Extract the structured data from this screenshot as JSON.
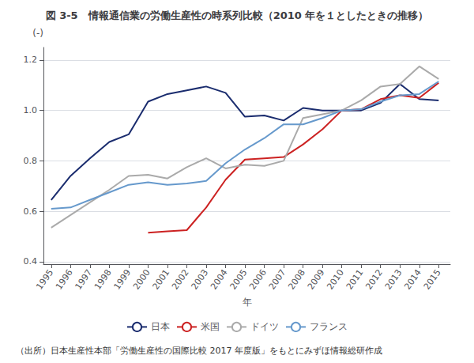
{
  "chart_data": {
    "type": "line",
    "title": "図 3-5　情報通信業の労働生産性の時系列比較（2010 年を１としたときの推移）",
    "xlabel": "年",
    "ylabel": "(-)",
    "annotations": [
      "（出所）日本生産性本部「労働生産性の国際比較 2017 年度版」をもとにみずほ情報総研作成"
    ],
    "x": [
      1995,
      1996,
      1997,
      1998,
      1999,
      2000,
      2001,
      2002,
      2003,
      2004,
      2005,
      2006,
      2007,
      2008,
      2009,
      2010,
      2011,
      2012,
      2013,
      2014,
      2015
    ],
    "series": [
      {
        "name": "日本",
        "color": "#1a2c6e",
        "values": [
          0.645,
          0.74,
          0.81,
          0.875,
          0.905,
          1.035,
          1.065,
          1.08,
          1.095,
          1.07,
          0.975,
          0.98,
          0.96,
          1.01,
          1.0,
          1.0,
          1.0,
          1.03,
          1.105,
          1.045,
          1.04
        ]
      },
      {
        "name": "米国",
        "color": "#cc2222",
        "values": [
          null,
          null,
          null,
          null,
          null,
          0.515,
          0.52,
          0.525,
          0.615,
          0.725,
          0.805,
          0.81,
          0.815,
          0.865,
          0.925,
          1.0,
          1.005,
          1.045,
          1.06,
          1.05,
          1.11
        ]
      },
      {
        "name": "ドイツ",
        "color": "#aaaaaa",
        "values": [
          0.535,
          0.585,
          0.635,
          0.685,
          0.74,
          0.745,
          0.73,
          0.775,
          0.81,
          0.77,
          0.785,
          0.78,
          0.8,
          0.97,
          0.985,
          1.0,
          1.04,
          1.095,
          1.105,
          1.175,
          1.125
        ]
      },
      {
        "name": "フランス",
        "color": "#6699cc",
        "values": [
          0.61,
          0.615,
          0.645,
          0.675,
          0.705,
          0.715,
          0.705,
          0.71,
          0.72,
          0.79,
          0.845,
          0.89,
          0.945,
          0.945,
          0.97,
          1.0,
          1.005,
          1.035,
          1.06,
          1.065,
          1.115
        ]
      }
    ],
    "xlim": [
      1994.6,
      2015.6
    ],
    "xticks": [
      1995,
      1996,
      1997,
      1998,
      1999,
      2000,
      2001,
      2002,
      2003,
      2004,
      2005,
      2006,
      2007,
      2008,
      2009,
      2010,
      2011,
      2012,
      2013,
      2014,
      2015
    ],
    "ylim": [
      0.39,
      1.25
    ],
    "yticks": [
      0.4,
      0.6,
      0.8,
      {
        "value": 1,
        "label": "1.0"
      },
      1.2
    ],
    "grid": true,
    "legend": "bottom"
  }
}
